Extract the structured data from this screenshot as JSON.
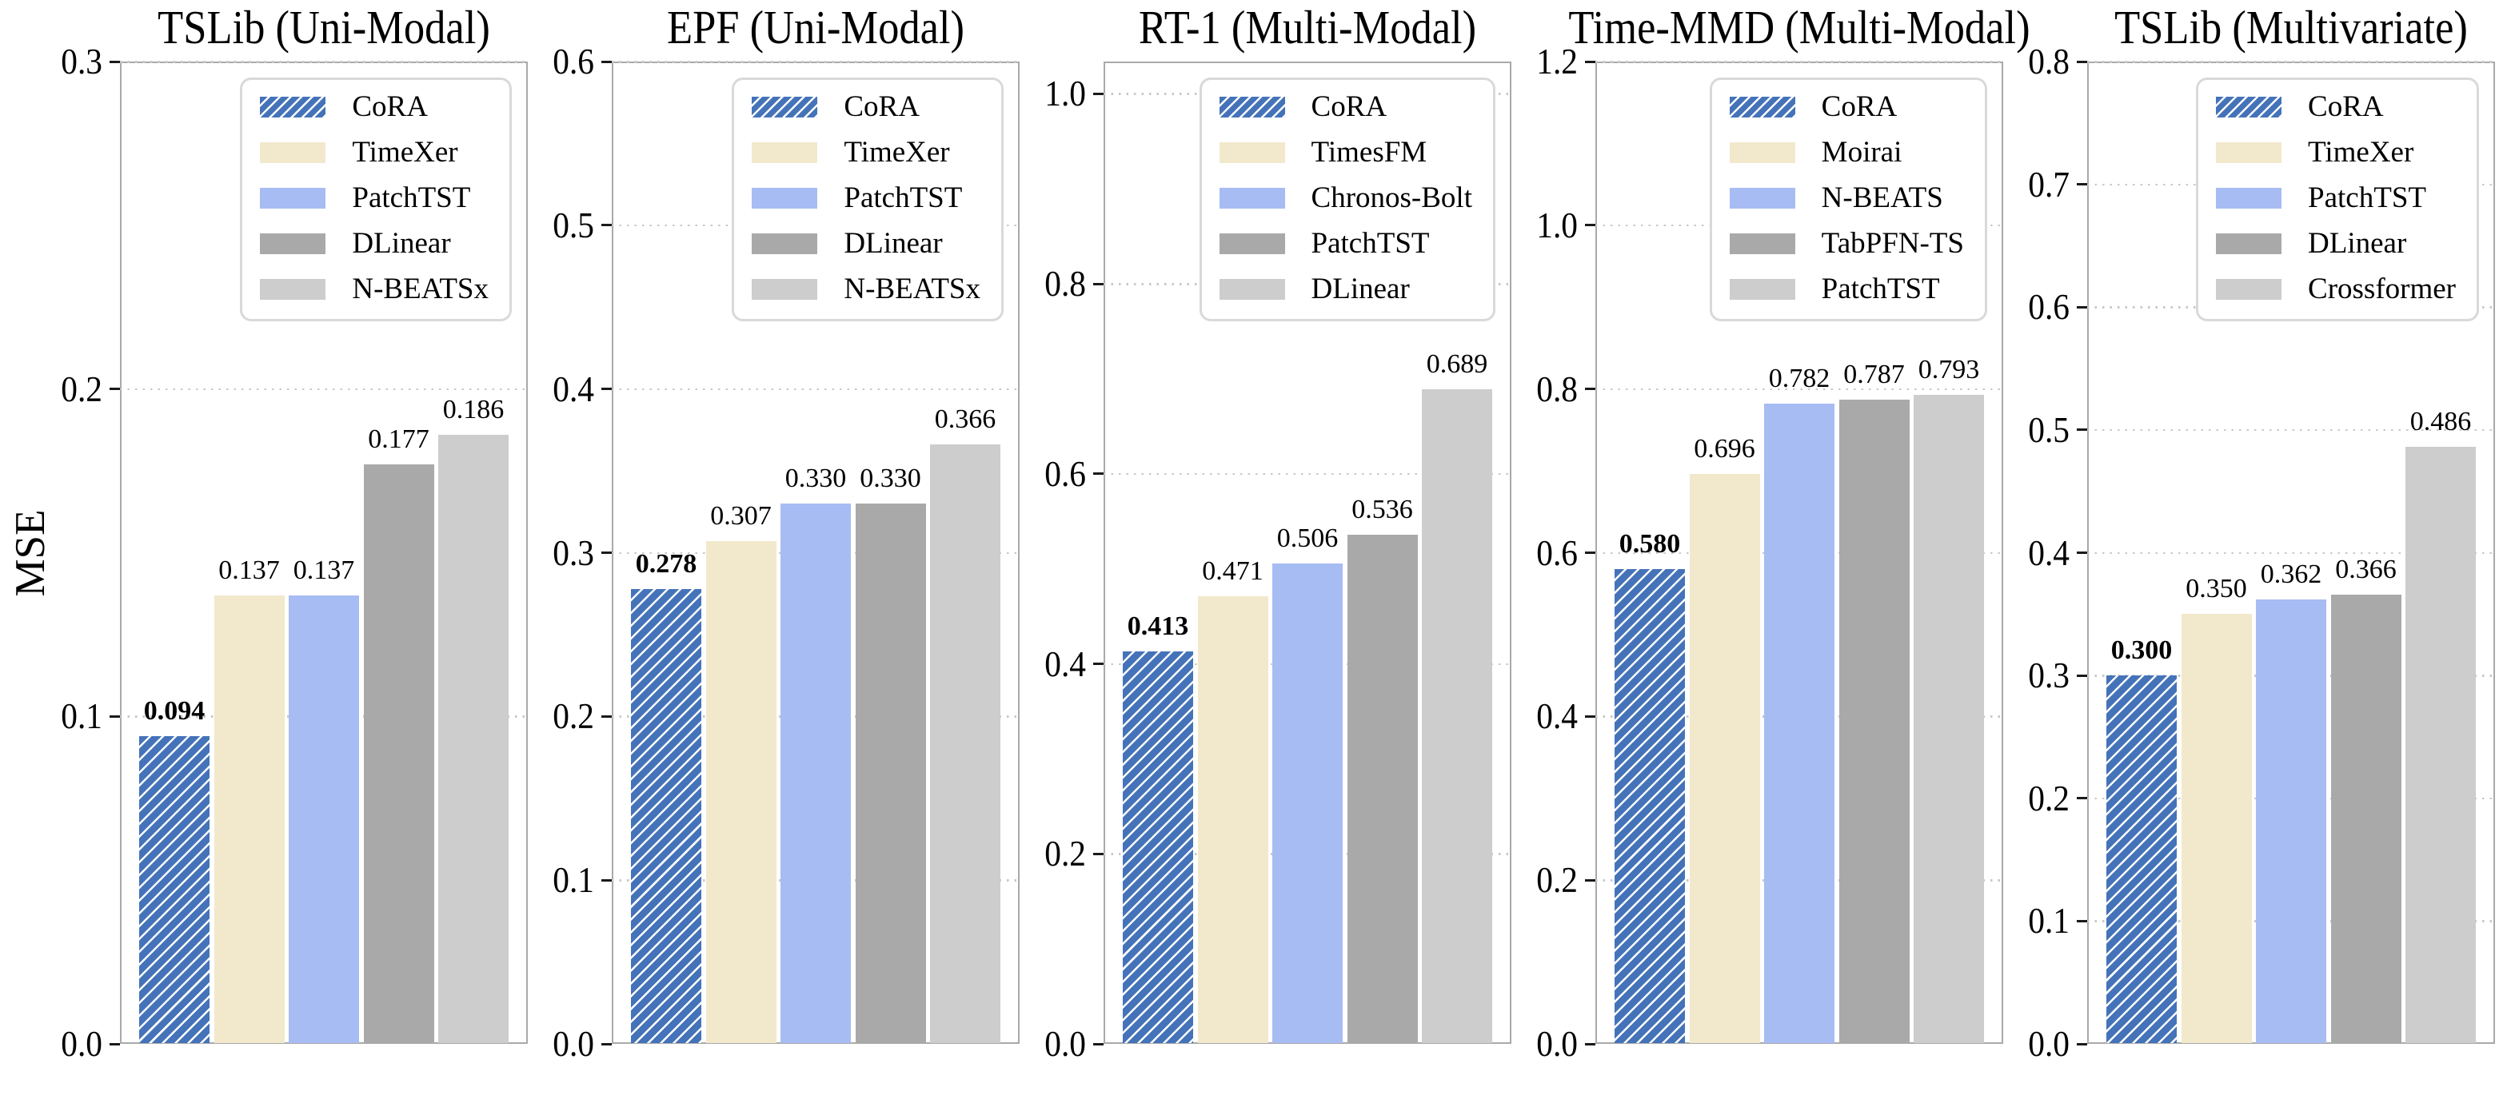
{
  "figure": {
    "ylabel": "MSE",
    "background": "#ffffff"
  },
  "palette": {
    "bars": [
      "#4573b9",
      "#f2e8cc",
      "#a7bcf3",
      "#a9a9a9",
      "#cdcdcd"
    ],
    "hatch_stripe": "#ffffff",
    "spine": "#a9a9a9",
    "grid_dots": "#c8c8c8",
    "tick_mark": "#1a1a1a",
    "legend_border": "#d9d9d9",
    "text": "#000000"
  },
  "chart_data": [
    {
      "type": "bar",
      "title": "TSLib (Uni-Modal)",
      "categories": [
        "CoRA",
        "TimeXer",
        "PatchTST",
        "DLinear",
        "N-BEATSx"
      ],
      "values": [
        0.094,
        0.137,
        0.137,
        0.177,
        0.186
      ],
      "value_labels": [
        "0.094",
        "0.137",
        "0.137",
        "0.177",
        "0.186"
      ],
      "bold_index": 0,
      "hatched_index": 0,
      "ylim": [
        0,
        0.3
      ],
      "yticks": [
        0,
        0.1,
        0.2,
        0.3
      ],
      "ytick_labels": [
        "0.0",
        "0.1",
        "0.2",
        "0.3"
      ],
      "grid": "dotted-horizontal",
      "legend_position": "upper-right"
    },
    {
      "type": "bar",
      "title": "EPF (Uni-Modal)",
      "categories": [
        "CoRA",
        "TimeXer",
        "PatchTST",
        "DLinear",
        "N-BEATSx"
      ],
      "values": [
        0.278,
        0.307,
        0.33,
        0.33,
        0.366
      ],
      "value_labels": [
        "0.278",
        "0.307",
        "0.330",
        "0.330",
        "0.366"
      ],
      "bold_index": 0,
      "hatched_index": 0,
      "ylim": [
        0,
        0.6
      ],
      "yticks": [
        0,
        0.1,
        0.2,
        0.3,
        0.4,
        0.5,
        0.6
      ],
      "ytick_labels": [
        "0.0",
        "0.1",
        "0.2",
        "0.3",
        "0.4",
        "0.5",
        "0.6"
      ],
      "grid": "dotted-horizontal",
      "legend_position": "upper-right"
    },
    {
      "type": "bar",
      "title": "RT-1 (Multi-Modal)",
      "categories": [
        "CoRA",
        "TimesFM",
        "Chronos-Bolt",
        "PatchTST",
        "DLinear"
      ],
      "values": [
        0.413,
        0.471,
        0.506,
        0.536,
        0.689
      ],
      "value_labels": [
        "0.413",
        "0.471",
        "0.506",
        "0.536",
        "0.689"
      ],
      "bold_index": 0,
      "hatched_index": 0,
      "ylim": [
        0,
        1.034
      ],
      "yticks": [
        0,
        0.2,
        0.4,
        0.6,
        0.8,
        1.0
      ],
      "ytick_labels": [
        "0.0",
        "0.2",
        "0.4",
        "0.6",
        "0.8",
        "1.0"
      ],
      "grid": "dotted-horizontal",
      "legend_position": "upper-right"
    },
    {
      "type": "bar",
      "title": "Time-MMD (Multi-Modal)",
      "categories": [
        "CoRA",
        "Moirai",
        "N-BEATS",
        "TabPFN-TS",
        "PatchTST"
      ],
      "values": [
        0.58,
        0.696,
        0.782,
        0.787,
        0.793
      ],
      "value_labels": [
        "0.580",
        "0.696",
        "0.782",
        "0.787",
        "0.793"
      ],
      "bold_index": 0,
      "hatched_index": 0,
      "ylim": [
        0,
        1.2
      ],
      "yticks": [
        0,
        0.2,
        0.4,
        0.6,
        0.8,
        1.0,
        1.2
      ],
      "ytick_labels": [
        "0.0",
        "0.2",
        "0.4",
        "0.6",
        "0.8",
        "1.0",
        "1.2"
      ],
      "grid": "dotted-horizontal",
      "legend_position": "upper-right"
    },
    {
      "type": "bar",
      "title": "TSLib (Multivariate)",
      "categories": [
        "CoRA",
        "TimeXer",
        "PatchTST",
        "DLinear",
        "Crossformer"
      ],
      "values": [
        0.3,
        0.35,
        0.362,
        0.366,
        0.486
      ],
      "value_labels": [
        "0.300",
        "0.350",
        "0.362",
        "0.366",
        "0.486"
      ],
      "bold_index": 0,
      "hatched_index": 0,
      "ylim": [
        0,
        0.8
      ],
      "yticks": [
        0,
        0.1,
        0.2,
        0.3,
        0.4,
        0.5,
        0.6,
        0.7,
        0.8
      ],
      "ytick_labels": [
        "0.0",
        "0.1",
        "0.2",
        "0.3",
        "0.4",
        "0.5",
        "0.6",
        "0.7",
        "0.8"
      ],
      "grid": "dotted-horizontal",
      "legend_position": "upper-right"
    }
  ]
}
